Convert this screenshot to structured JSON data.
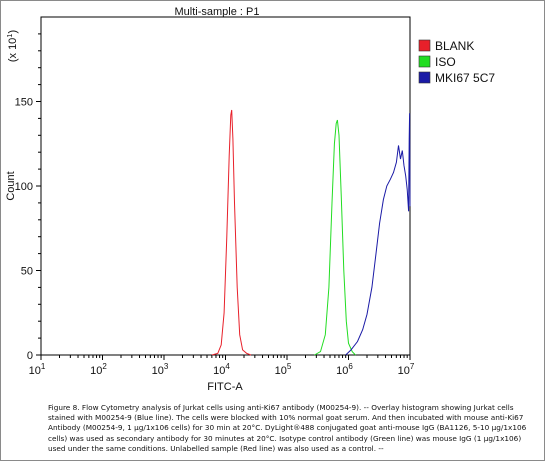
{
  "chart_data": {
    "type": "area",
    "title": "Multi-sample : P1",
    "xlabel": "FITC-A",
    "ylabel": "Count",
    "y_multiplier": "(x 10^1)",
    "x_scale": "log",
    "xlim": [
      10,
      10000000
    ],
    "ylim": [
      0,
      200
    ],
    "x_ticks": [
      {
        "value": 10,
        "label": "10^1"
      },
      {
        "value": 100,
        "label": "10^2"
      },
      {
        "value": 1000,
        "label": "10^3"
      },
      {
        "value": 10000,
        "label": "10^4"
      },
      {
        "value": 100000,
        "label": "10^5"
      },
      {
        "value": 1000000,
        "label": "10^6"
      },
      {
        "value": 10000000,
        "label": "10^7"
      }
    ],
    "y_ticks": [
      0,
      50,
      100,
      150
    ],
    "grid": false,
    "legend_position": "top-right",
    "series": [
      {
        "name": "BLANK",
        "color": "#e8202a",
        "points": [
          [
            6000,
            0
          ],
          [
            7500,
            1
          ],
          [
            8500,
            6
          ],
          [
            9500,
            25
          ],
          [
            10500,
            70
          ],
          [
            11500,
            118
          ],
          [
            12200,
            142
          ],
          [
            12600,
            145
          ],
          [
            13200,
            128
          ],
          [
            14000,
            90
          ],
          [
            15500,
            40
          ],
          [
            17000,
            12
          ],
          [
            19000,
            3
          ],
          [
            22000,
            1
          ],
          [
            26000,
            0
          ]
        ]
      },
      {
        "name": "ISO",
        "color": "#22dd22",
        "points": [
          [
            280000,
            0
          ],
          [
            350000,
            2
          ],
          [
            420000,
            12
          ],
          [
            480000,
            40
          ],
          [
            540000,
            90
          ],
          [
            590000,
            125
          ],
          [
            630000,
            137
          ],
          [
            660000,
            139
          ],
          [
            700000,
            130
          ],
          [
            760000,
            95
          ],
          [
            840000,
            50
          ],
          [
            920000,
            20
          ],
          [
            1000000,
            7
          ],
          [
            1150000,
            2
          ],
          [
            1300000,
            0
          ]
        ]
      },
      {
        "name": "MKI67 5C7",
        "color": "#1a1aa6",
        "points": [
          [
            900000,
            0
          ],
          [
            1100000,
            3
          ],
          [
            1400000,
            8
          ],
          [
            1700000,
            15
          ],
          [
            2000000,
            24
          ],
          [
            2400000,
            40
          ],
          [
            2800000,
            60
          ],
          [
            3200000,
            78
          ],
          [
            3700000,
            92
          ],
          [
            4200000,
            100
          ],
          [
            4800000,
            104
          ],
          [
            5400000,
            108
          ],
          [
            6000000,
            114
          ],
          [
            6500000,
            124
          ],
          [
            7000000,
            116
          ],
          [
            7500000,
            121
          ],
          [
            8000000,
            112
          ],
          [
            8500000,
            106
          ],
          [
            9000000,
            98
          ],
          [
            9500000,
            85
          ],
          [
            9700000,
            128
          ],
          [
            9850000,
            143
          ],
          [
            10000000,
            88
          ]
        ]
      }
    ],
    "caption": "Figure 8. Flow Cytometry analysis of Jurkat cells using anti-Ki67 antibody (M00254-9). -- Overlay histogram showing Jurkat cells stained with M00254-9 (Blue line). The cells were blocked with 10% normal goat serum. And then incubated with mouse anti-Ki67 Antibody (M00254-9, 1 μg/1x106 cells) for 30 min at 20°C. DyLight®488 conjugated goat anti-mouse IgG (BA1126, 5-10 μg/1x106 cells) was used as secondary antibody for 30 minutes at 20°C. Isotype control antibody (Green line) was mouse IgG (1 μg/1x106) used under the same conditions. Unlabelled sample (Red line) was also used as a control. --"
  }
}
